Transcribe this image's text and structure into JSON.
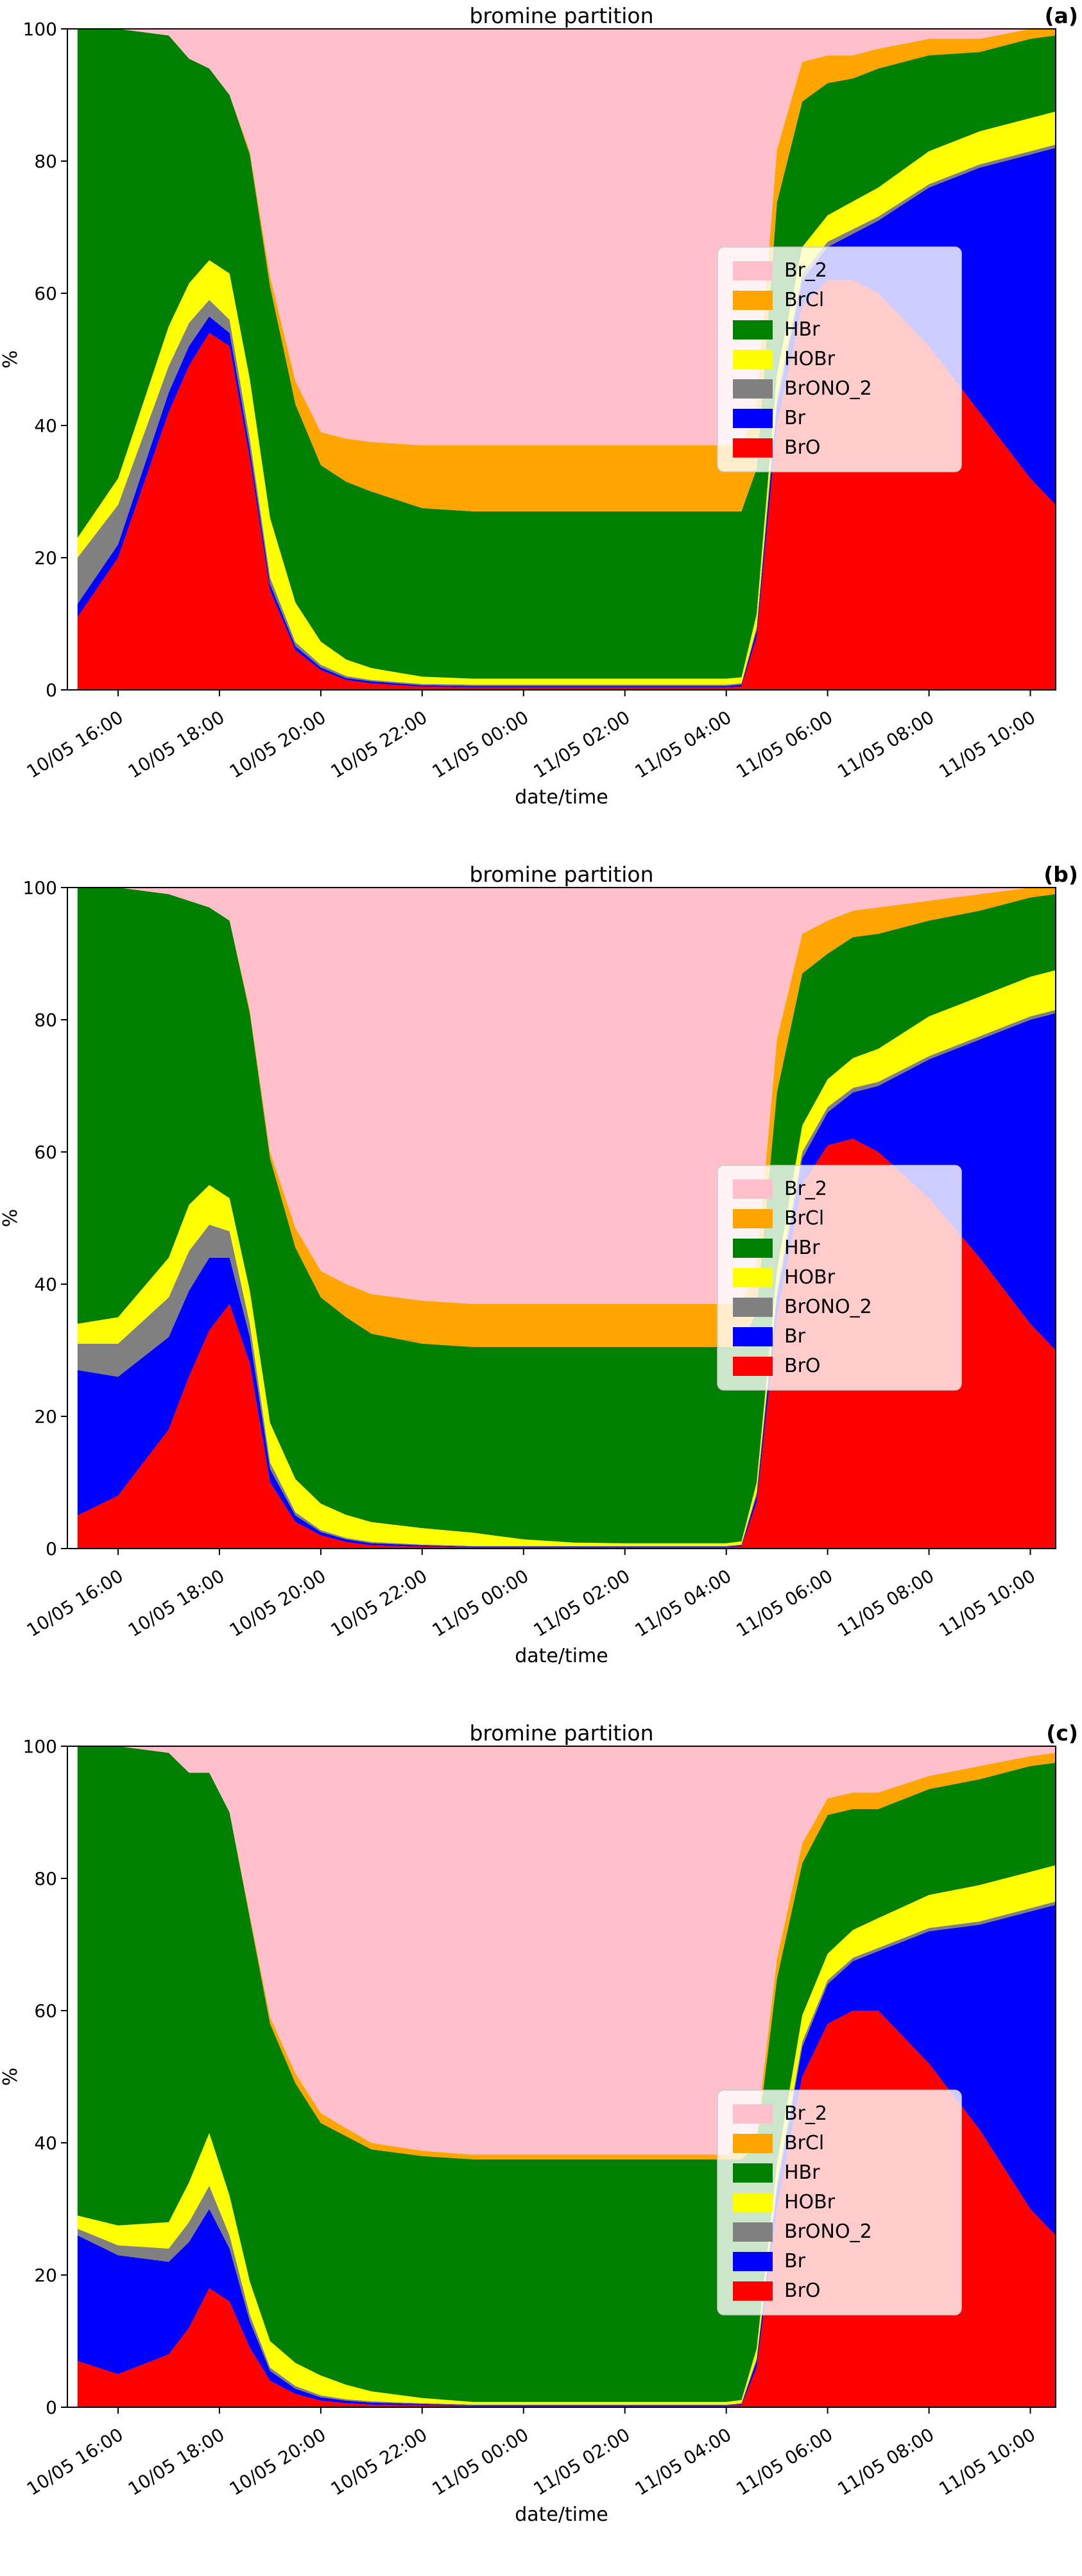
{
  "figure_title": "bromine partition",
  "chart_data": [
    {
      "panel_label": "(a)",
      "title": "bromine partition",
      "type": "area",
      "stacked": true,
      "stack_order": "bottom_to_top",
      "xlabel": "date/time",
      "ylabel": "%",
      "x_domain": [
        15,
        34.5
      ],
      "ylim": [
        0,
        100
      ],
      "y_ticks": [
        0,
        20,
        40,
        60,
        80,
        100
      ],
      "x_ticks": [
        16,
        18,
        20,
        22,
        24,
        26,
        28,
        30,
        32,
        34
      ],
      "x_tick_labels": [
        "10/05 16:00",
        "10/05 18:00",
        "10/05 20:00",
        "10/05 22:00",
        "11/05 00:00",
        "11/05 02:00",
        "11/05 04:00",
        "11/05 06:00",
        "11/05 08:00",
        "11/05 10:00"
      ],
      "x_hours": [
        15.2,
        16,
        17,
        17.4,
        17.8,
        18.2,
        18.6,
        19,
        19.5,
        20,
        20.5,
        21,
        22,
        23,
        24,
        25,
        26,
        27,
        28,
        28.3,
        28.6,
        29,
        29.5,
        30,
        30.5,
        31,
        32,
        33,
        34,
        34.5
      ],
      "series": [
        {
          "name": "BrO",
          "color": "#ff0000",
          "values": [
            11,
            20,
            42,
            49,
            54,
            52,
            35,
            15,
            6,
            3,
            1.5,
            1,
            0.5,
            0.4,
            0.4,
            0.4,
            0.4,
            0.4,
            0.4,
            0.5,
            8,
            40,
            58,
            62,
            62,
            60,
            52,
            42,
            32,
            28
          ]
        },
        {
          "name": "Br",
          "color": "#0000ff",
          "values": [
            2,
            2,
            3,
            3,
            2.5,
            2,
            1.5,
            1,
            0.6,
            0.4,
            0.3,
            0.3,
            0.2,
            0.2,
            0.2,
            0.2,
            0.2,
            0.2,
            0.2,
            0.3,
            1,
            3,
            4,
            5,
            7,
            11,
            24,
            37,
            49,
            54
          ]
        },
        {
          "name": "BrONO_2",
          "color": "#808080",
          "values": [
            7,
            6,
            4,
            3.5,
            2.5,
            2,
            1.5,
            1,
            0.6,
            0.4,
            0.3,
            0.2,
            0.2,
            0.2,
            0.2,
            0.2,
            0.2,
            0.2,
            0.2,
            0.2,
            0.5,
            1.2,
            1,
            0.8,
            0.7,
            0.6,
            0.5,
            0.5,
            0.5,
            0.5
          ]
        },
        {
          "name": "HOBr",
          "color": "#ffff00",
          "values": [
            3,
            4,
            6,
            6,
            6,
            7,
            9,
            9,
            6,
            3.5,
            2.5,
            1.8,
            1.1,
            0.9,
            0.9,
            0.9,
            0.9,
            0.9,
            0.9,
            0.9,
            2,
            3.5,
            4,
            4,
            4.2,
            4.4,
            5,
            5,
            5,
            5
          ]
        },
        {
          "name": "HBr",
          "color": "#008000",
          "values": [
            77,
            68,
            44,
            34,
            29,
            27,
            34,
            35,
            30,
            26.7,
            26.9,
            26.7,
            25.5,
            25.3,
            25.3,
            25.3,
            25.3,
            25.3,
            25.3,
            25.1,
            22,
            26,
            22,
            20,
            18.6,
            18,
            14.5,
            12,
            12,
            11.5
          ]
        },
        {
          "name": "BrCl",
          "color": "#ffa500",
          "values": [
            0,
            0,
            0,
            0,
            0,
            0,
            0.5,
            1.5,
            3.5,
            5,
            6.5,
            7.5,
            9.5,
            10,
            10,
            10,
            10,
            10,
            10,
            10,
            9.5,
            8,
            6,
            4.2,
            3.5,
            3,
            2.5,
            2,
            1.5,
            1
          ]
        },
        {
          "name": "Br_2",
          "color": "#ffc0cb",
          "values": [
            0,
            0,
            1,
            4.5,
            6,
            10,
            18.5,
            37.5,
            53.3,
            61,
            62,
            62.5,
            63,
            63,
            63,
            63,
            63,
            63,
            63,
            63,
            57,
            18.3,
            5,
            4,
            4,
            3,
            1.5,
            1.5,
            0,
            0
          ]
        }
      ],
      "legend": [
        "Br_2",
        "BrCl",
        "HBr",
        "HOBr",
        "BrONO_2",
        "Br",
        "BrO"
      ]
    },
    {
      "panel_label": "(b)",
      "title": "bromine partition",
      "type": "area",
      "stacked": true,
      "stack_order": "bottom_to_top",
      "xlabel": "date/time",
      "ylabel": "%",
      "x_domain": [
        15,
        34.5
      ],
      "ylim": [
        0,
        100
      ],
      "y_ticks": [
        0,
        20,
        40,
        60,
        80,
        100
      ],
      "x_ticks": [
        16,
        18,
        20,
        22,
        24,
        26,
        28,
        30,
        32,
        34
      ],
      "x_tick_labels": [
        "10/05 16:00",
        "10/05 18:00",
        "10/05 20:00",
        "10/05 22:00",
        "11/05 00:00",
        "11/05 02:00",
        "11/05 04:00",
        "11/05 06:00",
        "11/05 08:00",
        "11/05 10:00"
      ],
      "x_hours": [
        15.2,
        16,
        17,
        17.4,
        17.8,
        18.2,
        18.6,
        19,
        19.5,
        20,
        20.5,
        21,
        22,
        23,
        24,
        25,
        26,
        27,
        28,
        28.3,
        28.6,
        29,
        29.5,
        30,
        30.5,
        31,
        32,
        33,
        34,
        34.5
      ],
      "series": [
        {
          "name": "BrO",
          "color": "#ff0000",
          "values": [
            5,
            8,
            18,
            26,
            33,
            37,
            28,
            10,
            4,
            2,
            1,
            0.5,
            0.3,
            0.2,
            0.2,
            0.2,
            0.2,
            0.2,
            0.2,
            0.3,
            7,
            35,
            55,
            61,
            62,
            60,
            53,
            44,
            34,
            30
          ]
        },
        {
          "name": "Br",
          "color": "#0000ff",
          "values": [
            22,
            18,
            14,
            13,
            11,
            7,
            4,
            2,
            1,
            0.5,
            0.4,
            0.3,
            0.2,
            0.1,
            0.1,
            0.1,
            0.1,
            0.1,
            0.1,
            0.2,
            1,
            3,
            4,
            5,
            7,
            10,
            21,
            33,
            46,
            51
          ]
        },
        {
          "name": "BrONO_2",
          "color": "#808080",
          "values": [
            4,
            5,
            6,
            6,
            5,
            4,
            2,
            1,
            0.5,
            0.3,
            0.2,
            0.2,
            0.1,
            0.1,
            0.1,
            0.1,
            0.1,
            0.1,
            0.1,
            0.1,
            0.5,
            1,
            1,
            0.8,
            0.7,
            0.6,
            0.5,
            0.5,
            0.5,
            0.5
          ]
        },
        {
          "name": "HOBr",
          "color": "#ffff00",
          "values": [
            3,
            4,
            6,
            7,
            6,
            5,
            5,
            6,
            5,
            4,
            3.5,
            3,
            2.5,
            2,
            1,
            0.5,
            0.4,
            0.4,
            0.4,
            0.5,
            1.5,
            3,
            4,
            4.2,
            4.5,
            5,
            6,
            6,
            6,
            6
          ]
        },
        {
          "name": "HBr",
          "color": "#008000",
          "values": [
            66,
            65,
            55,
            46,
            42,
            42,
            42,
            40,
            35,
            31.2,
            29.9,
            28.5,
            27.9,
            28.1,
            29.1,
            29.6,
            29.7,
            29.7,
            29.7,
            29.4,
            26,
            27,
            23,
            19,
            18.3,
            17.4,
            14.5,
            13,
            12,
            11.5
          ]
        },
        {
          "name": "BrCl",
          "color": "#ffa500",
          "values": [
            0,
            0,
            0,
            0,
            0,
            0,
            0.5,
            1,
            3,
            4,
            5,
            6,
            6.5,
            6.5,
            6.5,
            6.5,
            6.5,
            6.5,
            6.5,
            6.5,
            7,
            8,
            6,
            5,
            4,
            4,
            3,
            2.5,
            1.5,
            1
          ]
        },
        {
          "name": "Br_2",
          "color": "#ffc0cb",
          "values": [
            0,
            0,
            1,
            2,
            3,
            5,
            18.5,
            40,
            51.5,
            58,
            60,
            61.5,
            62.5,
            63,
            63,
            63,
            63,
            63,
            63,
            63,
            57,
            23,
            7,
            5,
            3.5,
            3,
            2,
            1,
            0,
            0
          ]
        }
      ],
      "legend": [
        "Br_2",
        "BrCl",
        "HBr",
        "HOBr",
        "BrONO_2",
        "Br",
        "BrO"
      ]
    },
    {
      "panel_label": "(c)",
      "title": "bromine partition",
      "type": "area",
      "stacked": true,
      "stack_order": "bottom_to_top",
      "xlabel": "date/time",
      "ylabel": "%",
      "x_domain": [
        15,
        34.5
      ],
      "ylim": [
        0,
        100
      ],
      "y_ticks": [
        0,
        20,
        40,
        60,
        80,
        100
      ],
      "x_ticks": [
        16,
        18,
        20,
        22,
        24,
        26,
        28,
        30,
        32,
        34
      ],
      "x_tick_labels": [
        "10/05 16:00",
        "10/05 18:00",
        "10/05 20:00",
        "10/05 22:00",
        "11/05 00:00",
        "11/05 02:00",
        "11/05 04:00",
        "11/05 06:00",
        "11/05 08:00",
        "11/05 10:00"
      ],
      "x_hours": [
        15.2,
        16,
        17,
        17.4,
        17.8,
        18.2,
        18.6,
        19,
        19.5,
        20,
        20.5,
        21,
        22,
        23,
        24,
        25,
        26,
        27,
        28,
        28.3,
        28.6,
        29,
        29.5,
        30,
        30.5,
        31,
        32,
        33,
        34,
        34.5
      ],
      "series": [
        {
          "name": "BrO",
          "color": "#ff0000",
          "values": [
            7,
            5,
            8,
            12,
            18,
            16,
            9,
            4,
            2,
            1,
            0.6,
            0.4,
            0.3,
            0.2,
            0.2,
            0.2,
            0.2,
            0.2,
            0.2,
            0.3,
            6,
            30,
            50,
            58,
            60,
            60,
            52,
            42,
            30,
            26
          ]
        },
        {
          "name": "Br",
          "color": "#0000ff",
          "values": [
            19,
            18,
            14,
            13,
            12,
            8,
            4,
            1.5,
            0.8,
            0.5,
            0.4,
            0.3,
            0.2,
            0.1,
            0.1,
            0.1,
            0.1,
            0.1,
            0.1,
            0.2,
            1,
            3,
            4.5,
            6,
            7.5,
            9,
            20,
            31,
            45,
            50
          ]
        },
        {
          "name": "BrONO_2",
          "color": "#808080",
          "values": [
            1,
            1.5,
            2,
            3,
            3.5,
            2,
            1,
            0.5,
            0.4,
            0.3,
            0.2,
            0.2,
            0.1,
            0.1,
            0.1,
            0.1,
            0.1,
            0.1,
            0.1,
            0.1,
            0.4,
            0.8,
            0.8,
            0.6,
            0.5,
            0.5,
            0.5,
            0.5,
            0.5,
            0.5
          ]
        },
        {
          "name": "HOBr",
          "color": "#ffff00",
          "values": [
            2,
            3,
            4,
            6,
            8,
            6,
            5,
            4,
            3.5,
            3,
            2.2,
            1.5,
            0.8,
            0.4,
            0.4,
            0.4,
            0.4,
            0.4,
            0.4,
            0.5,
            1.5,
            3,
            4,
            4,
            4.2,
            4.5,
            5,
            5.5,
            5.5,
            5.5
          ]
        },
        {
          "name": "HBr",
          "color": "#008000",
          "values": [
            71,
            72.5,
            71,
            62,
            54.5,
            58,
            55,
            48,
            42.3,
            38.2,
            37.6,
            36.6,
            36.6,
            36.7,
            36.7,
            36.7,
            36.7,
            36.7,
            36.7,
            36.4,
            31,
            28,
            23,
            21,
            18.3,
            16.5,
            16,
            16,
            16,
            15.5
          ]
        },
        {
          "name": "BrCl",
          "color": "#ffa500",
          "values": [
            0,
            0,
            0,
            0,
            0,
            0,
            0.5,
            1,
            1.5,
            1.5,
            1.2,
            1,
            0.8,
            0.7,
            0.7,
            0.7,
            0.7,
            0.7,
            0.7,
            0.7,
            2,
            3,
            3,
            2.5,
            2.5,
            2.5,
            2,
            2,
            1.5,
            1.5
          ]
        },
        {
          "name": "Br_2",
          "color": "#ffc0cb",
          "values": [
            0,
            0,
            1,
            4,
            4,
            10,
            25.5,
            41,
            49.5,
            55.5,
            57.8,
            60,
            61.2,
            61.8,
            61.8,
            61.8,
            61.8,
            61.8,
            61.8,
            61.8,
            58.1,
            32.2,
            14.7,
            7.9,
            7,
            7,
            4.5,
            3,
            1.5,
            1
          ]
        }
      ],
      "legend": [
        "Br_2",
        "BrCl",
        "HBr",
        "HOBr",
        "BrONO_2",
        "Br",
        "BrO"
      ]
    }
  ]
}
